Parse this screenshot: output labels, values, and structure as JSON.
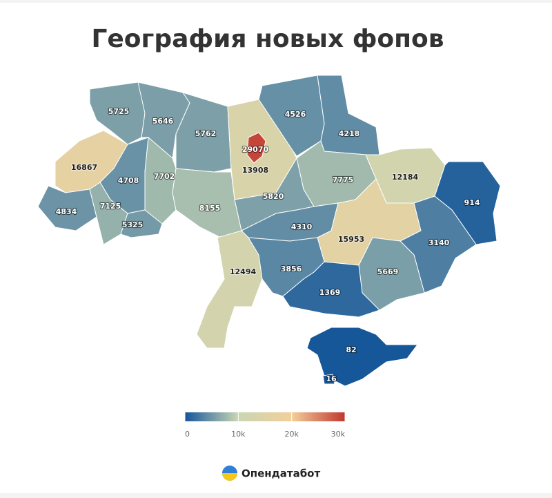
{
  "title": "География новых фопов",
  "map": {
    "values": [
      5725,
      5646,
      5762,
      29070,
      13908,
      4526,
      4218,
      16867,
      4708,
      7702,
      8155,
      5820,
      7775,
      12184,
      914,
      4834,
      7125,
      5325,
      4310,
      15953,
      3140,
      12494,
      3856,
      5669,
      1369,
      82,
      16
    ],
    "colorbar": {
      "range": [
        0,
        30000
      ],
      "ticks": [
        0,
        {
          "value": 10000,
          "label": "10k"
        },
        {
          "value": 20000,
          "label": "20k"
        },
        {
          "value": 30000,
          "label": "30k"
        }
      ],
      "colors": [
        "#15569a",
        "#c9d6b3",
        "#f3cf9a",
        "#c0372f"
      ]
    }
  },
  "logo": "Опендатабот"
}
